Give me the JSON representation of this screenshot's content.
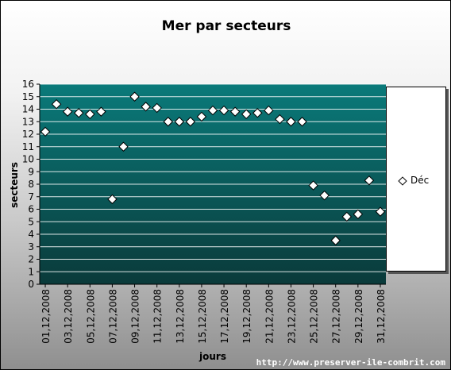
{
  "chart_data": {
    "type": "scatter",
    "title": "Mer par secteurs",
    "xlabel": "jours",
    "ylabel": "secteurs",
    "ylim": [
      0,
      16
    ],
    "yticks": [
      0,
      1,
      2,
      3,
      4,
      5,
      6,
      7,
      8,
      9,
      10,
      11,
      12,
      13,
      14,
      15,
      16
    ],
    "x_tick_labels": [
      "01,12,2008",
      "03,12,2008",
      "05,12,2008",
      "07,12,2008",
      "09,12,2008",
      "11,12,2008",
      "13,12,2008",
      "15,12,2008",
      "17,12,2008",
      "19,12,2008",
      "21,12,2008",
      "23,12,2008",
      "25,12,2008",
      "27,12,2008",
      "29,12,2008",
      "31,12,2008"
    ],
    "x": [
      "01,12,2008",
      "02,12,2008",
      "03,12,2008",
      "04,12,2008",
      "05,12,2008",
      "06,12,2008",
      "07,12,2008",
      "08,12,2008",
      "09,12,2008",
      "10,12,2008",
      "11,12,2008",
      "12,12,2008",
      "13,12,2008",
      "14,12,2008",
      "15,12,2008",
      "16,12,2008",
      "17,12,2008",
      "18,12,2008",
      "19,12,2008",
      "20,12,2008",
      "21,12,2008",
      "22,12,2008",
      "23,12,2008",
      "24,12,2008",
      "25,12,2008",
      "26,12,2008",
      "27,12,2008",
      "28,12,2008",
      "29,12,2008",
      "30,12,2008",
      "31,12,2008"
    ],
    "series": [
      {
        "name": "Déc",
        "values": [
          12.2,
          14.4,
          13.8,
          13.7,
          13.6,
          13.8,
          6.8,
          11.0,
          15.0,
          14.2,
          14.1,
          13.0,
          13.0,
          13.0,
          13.4,
          13.9,
          13.9,
          13.8,
          13.6,
          13.7,
          13.9,
          13.2,
          13.0,
          13.0,
          7.9,
          7.1,
          3.5,
          5.4,
          5.6,
          8.3,
          5.8
        ]
      }
    ],
    "grid": true,
    "legend_position": "right",
    "plot_color": "#006b6b"
  },
  "footer": {
    "url": "http://www.preserver-ile-combrit.com"
  }
}
